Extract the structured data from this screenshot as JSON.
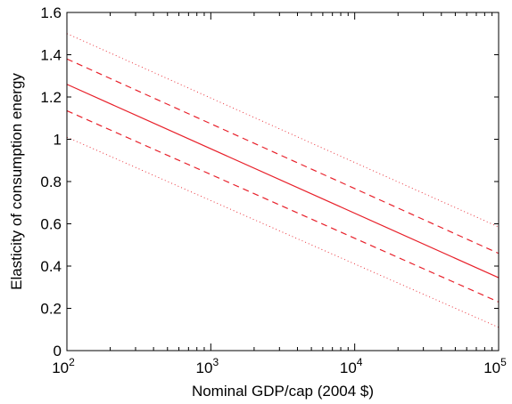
{
  "chart_data": {
    "type": "line",
    "title": "",
    "xlabel": "Nominal GDP/cap (2004 $)",
    "ylabel": "Elasticity of consumption energy",
    "x_scale": "log",
    "xlim": [
      100,
      100000
    ],
    "ylim": [
      0,
      1.6
    ],
    "x_ticks": [
      {
        "value": 100,
        "base": "10",
        "exp": "2"
      },
      {
        "value": 1000,
        "base": "10",
        "exp": "3"
      },
      {
        "value": 10000,
        "base": "10",
        "exp": "4"
      },
      {
        "value": 100000,
        "base": "10",
        "exp": "5"
      }
    ],
    "y_ticks": [
      {
        "value": 0,
        "label": "0"
      },
      {
        "value": 0.2,
        "label": "0.2"
      },
      {
        "value": 0.4,
        "label": "0.4"
      },
      {
        "value": 0.6,
        "label": "0.6"
      },
      {
        "value": 0.8,
        "label": "0.8"
      },
      {
        "value": 1.0,
        "label": "1"
      },
      {
        "value": 1.2,
        "label": "1.2"
      },
      {
        "value": 1.4,
        "label": "1.4"
      },
      {
        "value": 1.6,
        "label": "1.6"
      }
    ],
    "grid": false,
    "legend": "none",
    "series": [
      {
        "style": "dotted",
        "color": "#e8202a",
        "x": [
          100,
          100000
        ],
        "y": [
          1.5,
          0.585
        ]
      },
      {
        "style": "dashed",
        "color": "#e8202a",
        "x": [
          100,
          100000
        ],
        "y": [
          1.38,
          0.46
        ]
      },
      {
        "style": "solid",
        "color": "#e8202a",
        "x": [
          100,
          100000
        ],
        "y": [
          1.26,
          0.345
        ]
      },
      {
        "style": "dashed",
        "color": "#e8202a",
        "x": [
          100,
          100000
        ],
        "y": [
          1.135,
          0.23
        ]
      },
      {
        "style": "dotted",
        "color": "#e8202a",
        "x": [
          100,
          100000
        ],
        "y": [
          1.01,
          0.11
        ]
      }
    ]
  }
}
